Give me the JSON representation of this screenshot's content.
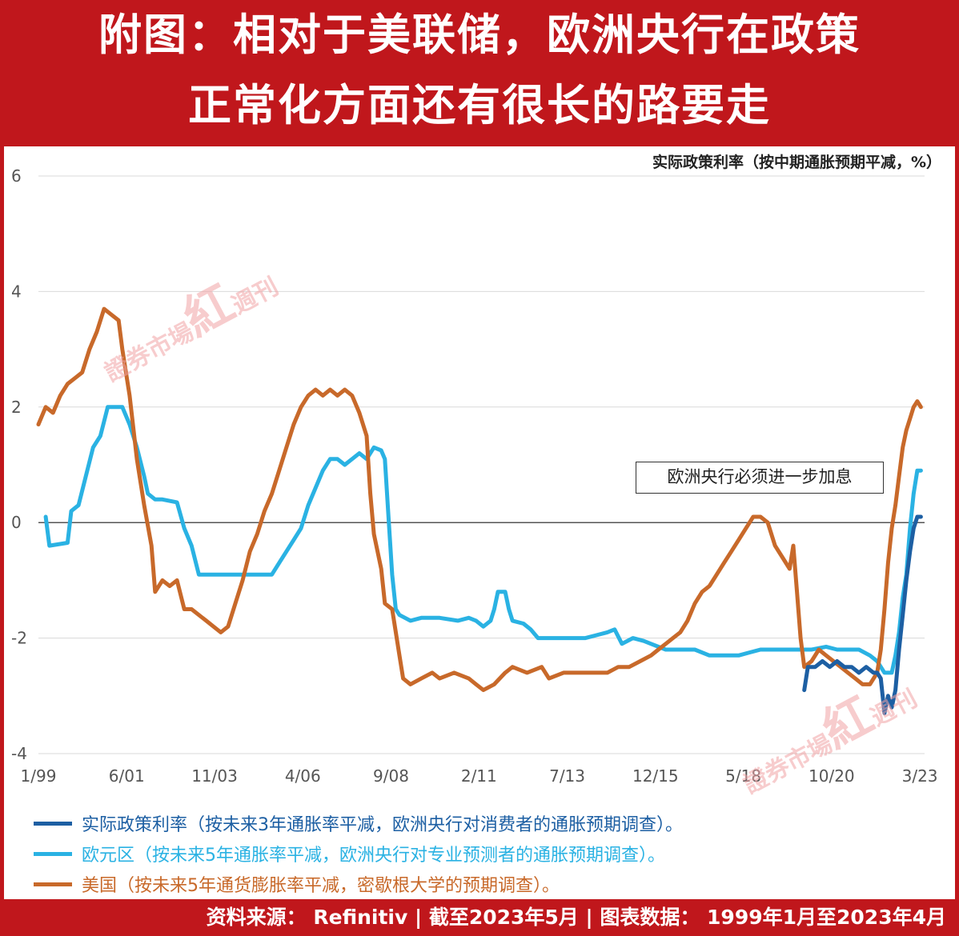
{
  "header": {
    "title_line1": "附图：相对于美联储，欧洲央行在政策",
    "title_line2": "正常化方面还有很长的路要走"
  },
  "footer": {
    "source": "资料来源： Refinitiv | 截至2023年5月 | 图表数据： 1999年1月至2023年4月"
  },
  "watermarks": [
    "證券市場",
    "紅",
    "週刊",
    "證券市場",
    "紅",
    "週刊"
  ],
  "colors": {
    "brand_red": "#c0171c",
    "series_dark_blue": "#1d5fa3",
    "series_light_blue": "#2ab2e3",
    "series_orange": "#c8692a"
  },
  "chart_data": {
    "type": "line",
    "ylabel": "实际政策利率（按中期通胀预期平减，%）",
    "ylim": [
      -4,
      6
    ],
    "yticks": [
      "6",
      "4",
      "2",
      "0",
      "-2",
      "-4"
    ],
    "xlim": [
      1999.0,
      2023.3
    ],
    "xticks": [
      {
        "label": "1/99",
        "x": 1999.0
      },
      {
        "label": "6/01",
        "x": 2001.42
      },
      {
        "label": "11/03",
        "x": 2003.83
      },
      {
        "label": "4/06",
        "x": 2006.25
      },
      {
        "label": "9/08",
        "x": 2008.67
      },
      {
        "label": "2/11",
        "x": 2011.08
      },
      {
        "label": "7/13",
        "x": 2013.5
      },
      {
        "label": "12/15",
        "x": 2015.92
      },
      {
        "label": "5/18",
        "x": 2018.33
      },
      {
        "label": "10/20",
        "x": 2020.75
      },
      {
        "label": "3/23",
        "x": 2023.17
      }
    ],
    "grid": true,
    "annotation": "欧洲央行必须进一步加息",
    "series": [
      {
        "name": "实际政策利率（按未来3年通胀率平减，欧洲央行对消费者的通胀预期调查）。",
        "color": "#1d5fa3",
        "points": [
          [
            2020.0,
            -2.9
          ],
          [
            2020.1,
            -2.5
          ],
          [
            2020.3,
            -2.5
          ],
          [
            2020.5,
            -2.4
          ],
          [
            2020.7,
            -2.5
          ],
          [
            2020.9,
            -2.4
          ],
          [
            2021.1,
            -2.5
          ],
          [
            2021.3,
            -2.5
          ],
          [
            2021.5,
            -2.6
          ],
          [
            2021.7,
            -2.5
          ],
          [
            2021.9,
            -2.6
          ],
          [
            2022.0,
            -2.6
          ],
          [
            2022.1,
            -2.7
          ],
          [
            2022.2,
            -3.3
          ],
          [
            2022.3,
            -3.0
          ],
          [
            2022.4,
            -3.2
          ],
          [
            2022.5,
            -2.9
          ],
          [
            2022.6,
            -2.2
          ],
          [
            2022.7,
            -1.6
          ],
          [
            2022.8,
            -1.0
          ],
          [
            2022.9,
            -0.5
          ],
          [
            2023.0,
            -0.1
          ],
          [
            2023.1,
            0.1
          ],
          [
            2023.2,
            0.1
          ]
        ]
      },
      {
        "name": "欧元区（按未来5年通胀率平减，欧洲央行对专业预测者的通胀预期调查）。",
        "color": "#2ab2e3",
        "points": [
          [
            1999.2,
            0.1
          ],
          [
            1999.3,
            -0.4
          ],
          [
            1999.8,
            -0.35
          ],
          [
            1999.9,
            0.2
          ],
          [
            2000.1,
            0.3
          ],
          [
            2000.3,
            0.8
          ],
          [
            2000.5,
            1.3
          ],
          [
            2000.7,
            1.5
          ],
          [
            2000.9,
            2.0
          ],
          [
            2001.1,
            2.0
          ],
          [
            2001.3,
            2.0
          ],
          [
            2001.5,
            1.7
          ],
          [
            2001.7,
            1.3
          ],
          [
            2001.9,
            0.8
          ],
          [
            2002.0,
            0.5
          ],
          [
            2002.2,
            0.4
          ],
          [
            2002.4,
            0.4
          ],
          [
            2002.8,
            0.35
          ],
          [
            2003.0,
            -0.1
          ],
          [
            2003.2,
            -0.4
          ],
          [
            2003.4,
            -0.9
          ],
          [
            2004.0,
            -0.9
          ],
          [
            2004.5,
            -0.9
          ],
          [
            2005.0,
            -0.9
          ],
          [
            2005.4,
            -0.9
          ],
          [
            2005.6,
            -0.7
          ],
          [
            2005.8,
            -0.5
          ],
          [
            2006.0,
            -0.3
          ],
          [
            2006.2,
            -0.1
          ],
          [
            2006.4,
            0.3
          ],
          [
            2006.6,
            0.6
          ],
          [
            2006.8,
            0.9
          ],
          [
            2007.0,
            1.1
          ],
          [
            2007.2,
            1.1
          ],
          [
            2007.4,
            1.0
          ],
          [
            2007.6,
            1.1
          ],
          [
            2007.8,
            1.2
          ],
          [
            2008.0,
            1.1
          ],
          [
            2008.2,
            1.3
          ],
          [
            2008.4,
            1.25
          ],
          [
            2008.5,
            1.1
          ],
          [
            2008.6,
            0.1
          ],
          [
            2008.7,
            -0.9
          ],
          [
            2008.8,
            -1.5
          ],
          [
            2008.9,
            -1.6
          ],
          [
            2009.2,
            -1.7
          ],
          [
            2009.5,
            -1.65
          ],
          [
            2010.0,
            -1.65
          ],
          [
            2010.5,
            -1.7
          ],
          [
            2010.8,
            -1.65
          ],
          [
            2011.0,
            -1.7
          ],
          [
            2011.2,
            -1.8
          ],
          [
            2011.4,
            -1.7
          ],
          [
            2011.5,
            -1.5
          ],
          [
            2011.6,
            -1.2
          ],
          [
            2011.8,
            -1.2
          ],
          [
            2011.9,
            -1.5
          ],
          [
            2012.0,
            -1.7
          ],
          [
            2012.3,
            -1.75
          ],
          [
            2012.5,
            -1.85
          ],
          [
            2012.7,
            -2.0
          ],
          [
            2013.0,
            -2.0
          ],
          [
            2013.5,
            -2.0
          ],
          [
            2014.0,
            -2.0
          ],
          [
            2014.3,
            -1.95
          ],
          [
            2014.6,
            -1.9
          ],
          [
            2014.8,
            -1.85
          ],
          [
            2015.0,
            -2.1
          ],
          [
            2015.3,
            -2.0
          ],
          [
            2015.6,
            -2.05
          ],
          [
            2015.8,
            -2.1
          ],
          [
            2016.2,
            -2.2
          ],
          [
            2016.6,
            -2.2
          ],
          [
            2017.0,
            -2.2
          ],
          [
            2017.4,
            -2.3
          ],
          [
            2017.8,
            -2.3
          ],
          [
            2018.2,
            -2.3
          ],
          [
            2018.5,
            -2.25
          ],
          [
            2018.8,
            -2.2
          ],
          [
            2019.0,
            -2.2
          ],
          [
            2019.4,
            -2.2
          ],
          [
            2019.8,
            -2.2
          ],
          [
            2020.2,
            -2.2
          ],
          [
            2020.6,
            -2.15
          ],
          [
            2020.9,
            -2.2
          ],
          [
            2021.2,
            -2.2
          ],
          [
            2021.5,
            -2.2
          ],
          [
            2021.8,
            -2.3
          ],
          [
            2022.0,
            -2.4
          ],
          [
            2022.2,
            -2.6
          ],
          [
            2022.4,
            -2.6
          ],
          [
            2022.5,
            -2.3
          ],
          [
            2022.6,
            -1.9
          ],
          [
            2022.7,
            -1.3
          ],
          [
            2022.8,
            -0.9
          ],
          [
            2022.9,
            -0.1
          ],
          [
            2023.0,
            0.5
          ],
          [
            2023.1,
            0.9
          ],
          [
            2023.2,
            0.9
          ]
        ]
      },
      {
        "name": "美国（按未来5年通货膨胀率平减，密歇根大学的预期调查）。",
        "color": "#c8692a",
        "points": [
          [
            1999.0,
            1.7
          ],
          [
            1999.2,
            2.0
          ],
          [
            1999.4,
            1.9
          ],
          [
            1999.6,
            2.2
          ],
          [
            1999.8,
            2.4
          ],
          [
            2000.0,
            2.5
          ],
          [
            2000.2,
            2.6
          ],
          [
            2000.4,
            3.0
          ],
          [
            2000.6,
            3.3
          ],
          [
            2000.8,
            3.7
          ],
          [
            2001.0,
            3.6
          ],
          [
            2001.2,
            3.5
          ],
          [
            2001.3,
            3.0
          ],
          [
            2001.5,
            2.2
          ],
          [
            2001.7,
            1.1
          ],
          [
            2001.9,
            0.3
          ],
          [
            2002.1,
            -0.4
          ],
          [
            2002.2,
            -1.2
          ],
          [
            2002.4,
            -1.0
          ],
          [
            2002.6,
            -1.1
          ],
          [
            2002.8,
            -1.0
          ],
          [
            2003.0,
            -1.5
          ],
          [
            2003.2,
            -1.5
          ],
          [
            2003.4,
            -1.6
          ],
          [
            2003.6,
            -1.7
          ],
          [
            2003.8,
            -1.8
          ],
          [
            2004.0,
            -1.9
          ],
          [
            2004.2,
            -1.8
          ],
          [
            2004.4,
            -1.4
          ],
          [
            2004.6,
            -1.0
          ],
          [
            2004.8,
            -0.5
          ],
          [
            2005.0,
            -0.2
          ],
          [
            2005.2,
            0.2
          ],
          [
            2005.4,
            0.5
          ],
          [
            2005.6,
            0.9
          ],
          [
            2005.8,
            1.3
          ],
          [
            2006.0,
            1.7
          ],
          [
            2006.2,
            2.0
          ],
          [
            2006.4,
            2.2
          ],
          [
            2006.6,
            2.3
          ],
          [
            2006.8,
            2.2
          ],
          [
            2007.0,
            2.3
          ],
          [
            2007.2,
            2.2
          ],
          [
            2007.4,
            2.3
          ],
          [
            2007.6,
            2.2
          ],
          [
            2007.8,
            1.9
          ],
          [
            2008.0,
            1.5
          ],
          [
            2008.1,
            0.5
          ],
          [
            2008.2,
            -0.2
          ],
          [
            2008.4,
            -0.8
          ],
          [
            2008.5,
            -1.4
          ],
          [
            2008.7,
            -1.5
          ],
          [
            2008.9,
            -2.3
          ],
          [
            2009.0,
            -2.7
          ],
          [
            2009.2,
            -2.8
          ],
          [
            2009.5,
            -2.7
          ],
          [
            2009.8,
            -2.6
          ],
          [
            2010.0,
            -2.7
          ],
          [
            2010.4,
            -2.6
          ],
          [
            2010.8,
            -2.7
          ],
          [
            2011.0,
            -2.8
          ],
          [
            2011.2,
            -2.9
          ],
          [
            2011.5,
            -2.8
          ],
          [
            2011.8,
            -2.6
          ],
          [
            2012.0,
            -2.5
          ],
          [
            2012.4,
            -2.6
          ],
          [
            2012.8,
            -2.5
          ],
          [
            2013.0,
            -2.7
          ],
          [
            2013.4,
            -2.6
          ],
          [
            2013.8,
            -2.6
          ],
          [
            2014.2,
            -2.6
          ],
          [
            2014.6,
            -2.6
          ],
          [
            2014.9,
            -2.5
          ],
          [
            2015.2,
            -2.5
          ],
          [
            2015.5,
            -2.4
          ],
          [
            2015.8,
            -2.3
          ],
          [
            2016.0,
            -2.2
          ],
          [
            2016.2,
            -2.1
          ],
          [
            2016.4,
            -2.0
          ],
          [
            2016.6,
            -1.9
          ],
          [
            2016.8,
            -1.7
          ],
          [
            2017.0,
            -1.4
          ],
          [
            2017.2,
            -1.2
          ],
          [
            2017.4,
            -1.1
          ],
          [
            2017.6,
            -0.9
          ],
          [
            2017.8,
            -0.7
          ],
          [
            2018.0,
            -0.5
          ],
          [
            2018.2,
            -0.3
          ],
          [
            2018.4,
            -0.1
          ],
          [
            2018.6,
            0.1
          ],
          [
            2018.8,
            0.1
          ],
          [
            2019.0,
            0.0
          ],
          [
            2019.2,
            -0.4
          ],
          [
            2019.4,
            -0.6
          ],
          [
            2019.6,
            -0.8
          ],
          [
            2019.7,
            -0.4
          ],
          [
            2019.8,
            -1.2
          ],
          [
            2019.9,
            -2.0
          ],
          [
            2020.0,
            -2.5
          ],
          [
            2020.2,
            -2.4
          ],
          [
            2020.4,
            -2.2
          ],
          [
            2020.6,
            -2.3
          ],
          [
            2020.8,
            -2.4
          ],
          [
            2021.0,
            -2.5
          ],
          [
            2021.2,
            -2.6
          ],
          [
            2021.4,
            -2.7
          ],
          [
            2021.6,
            -2.8
          ],
          [
            2021.8,
            -2.8
          ],
          [
            2022.0,
            -2.6
          ],
          [
            2022.1,
            -2.2
          ],
          [
            2022.2,
            -1.5
          ],
          [
            2022.3,
            -0.7
          ],
          [
            2022.4,
            -0.1
          ],
          [
            2022.5,
            0.3
          ],
          [
            2022.6,
            0.8
          ],
          [
            2022.7,
            1.3
          ],
          [
            2022.8,
            1.6
          ],
          [
            2022.9,
            1.8
          ],
          [
            2023.0,
            2.0
          ],
          [
            2023.1,
            2.1
          ],
          [
            2023.2,
            2.0
          ]
        ]
      }
    ]
  }
}
